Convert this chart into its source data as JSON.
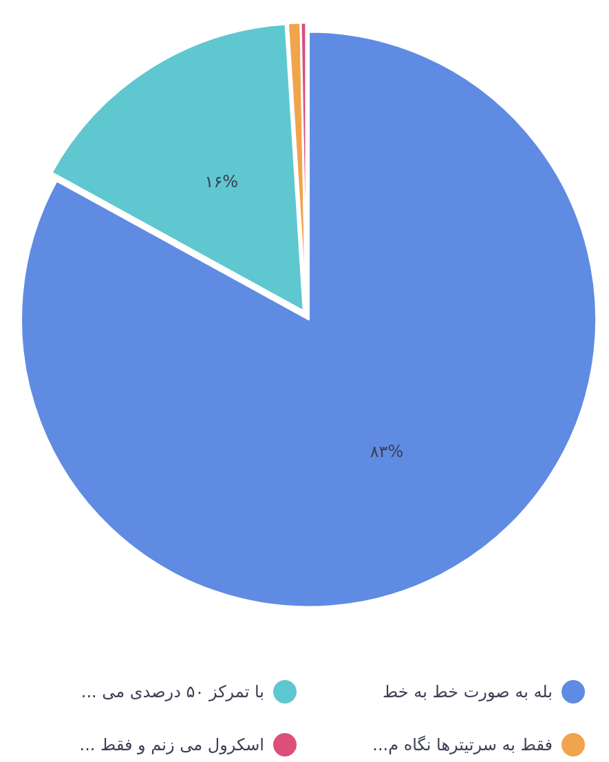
{
  "chart_data": {
    "type": "pie",
    "categories": [
      "بله به صورت خط به خط",
      "با تمرکز ۵۰ درصدی می ...",
      "فقط به سرتیترها نگاه م...",
      "اسکرول می زنم و فقط ..."
    ],
    "values": [
      83,
      16,
      0.7,
      0.3
    ],
    "colors": [
      "#5f8be2",
      "#5ec7cf",
      "#f0a44b",
      "#dc4f7a"
    ],
    "value_labels": [
      "٨٣%",
      "١۶%",
      null,
      null
    ],
    "legend": "bottom"
  }
}
